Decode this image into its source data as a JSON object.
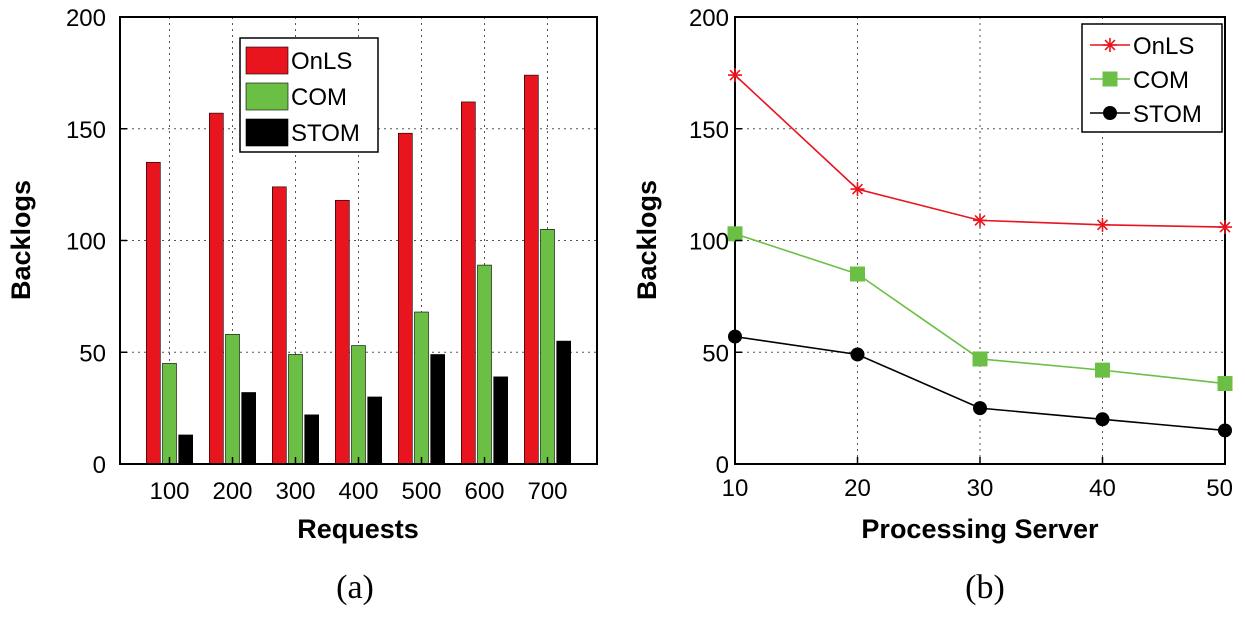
{
  "chart_data": [
    {
      "type": "bar",
      "caption": "(a)",
      "xlabel": "Requests",
      "ylabel": "Backlogs",
      "ylim": [
        0,
        200
      ],
      "yticks": [
        0,
        50,
        100,
        150,
        200
      ],
      "categories": [
        "100",
        "200",
        "300",
        "400",
        "500",
        "600",
        "700"
      ],
      "series": [
        {
          "name": "OnLS",
          "color": "#e8141e",
          "values": [
            135,
            157,
            124,
            118,
            148,
            162,
            174
          ]
        },
        {
          "name": "COM",
          "color": "#6cbf45",
          "values": [
            45,
            58,
            49,
            53,
            68,
            89,
            105
          ]
        },
        {
          "name": "STOM",
          "color": "#000000",
          "values": [
            13,
            32,
            22,
            30,
            49,
            39,
            55
          ]
        }
      ],
      "grid": true,
      "legend": "top-center"
    },
    {
      "type": "line",
      "caption": "(b)",
      "xlabel": "Processing Server",
      "ylabel": "Backlogs",
      "xlim": [
        10,
        50
      ],
      "ylim": [
        0,
        200
      ],
      "xticks": [
        10,
        20,
        30,
        40,
        50
      ],
      "yticks": [
        0,
        50,
        100,
        150,
        200
      ],
      "x": [
        10,
        20,
        30,
        40,
        50
      ],
      "series": [
        {
          "name": "OnLS",
          "color": "#e8141e",
          "marker": "star",
          "values": [
            174,
            123,
            109,
            107,
            106
          ]
        },
        {
          "name": "COM",
          "color": "#6cbf45",
          "marker": "square",
          "values": [
            103,
            85,
            47,
            42,
            36
          ]
        },
        {
          "name": "STOM",
          "color": "#000000",
          "marker": "circle",
          "values": [
            57,
            49,
            25,
            20,
            15
          ]
        }
      ],
      "grid": true,
      "legend": "top-right"
    }
  ]
}
